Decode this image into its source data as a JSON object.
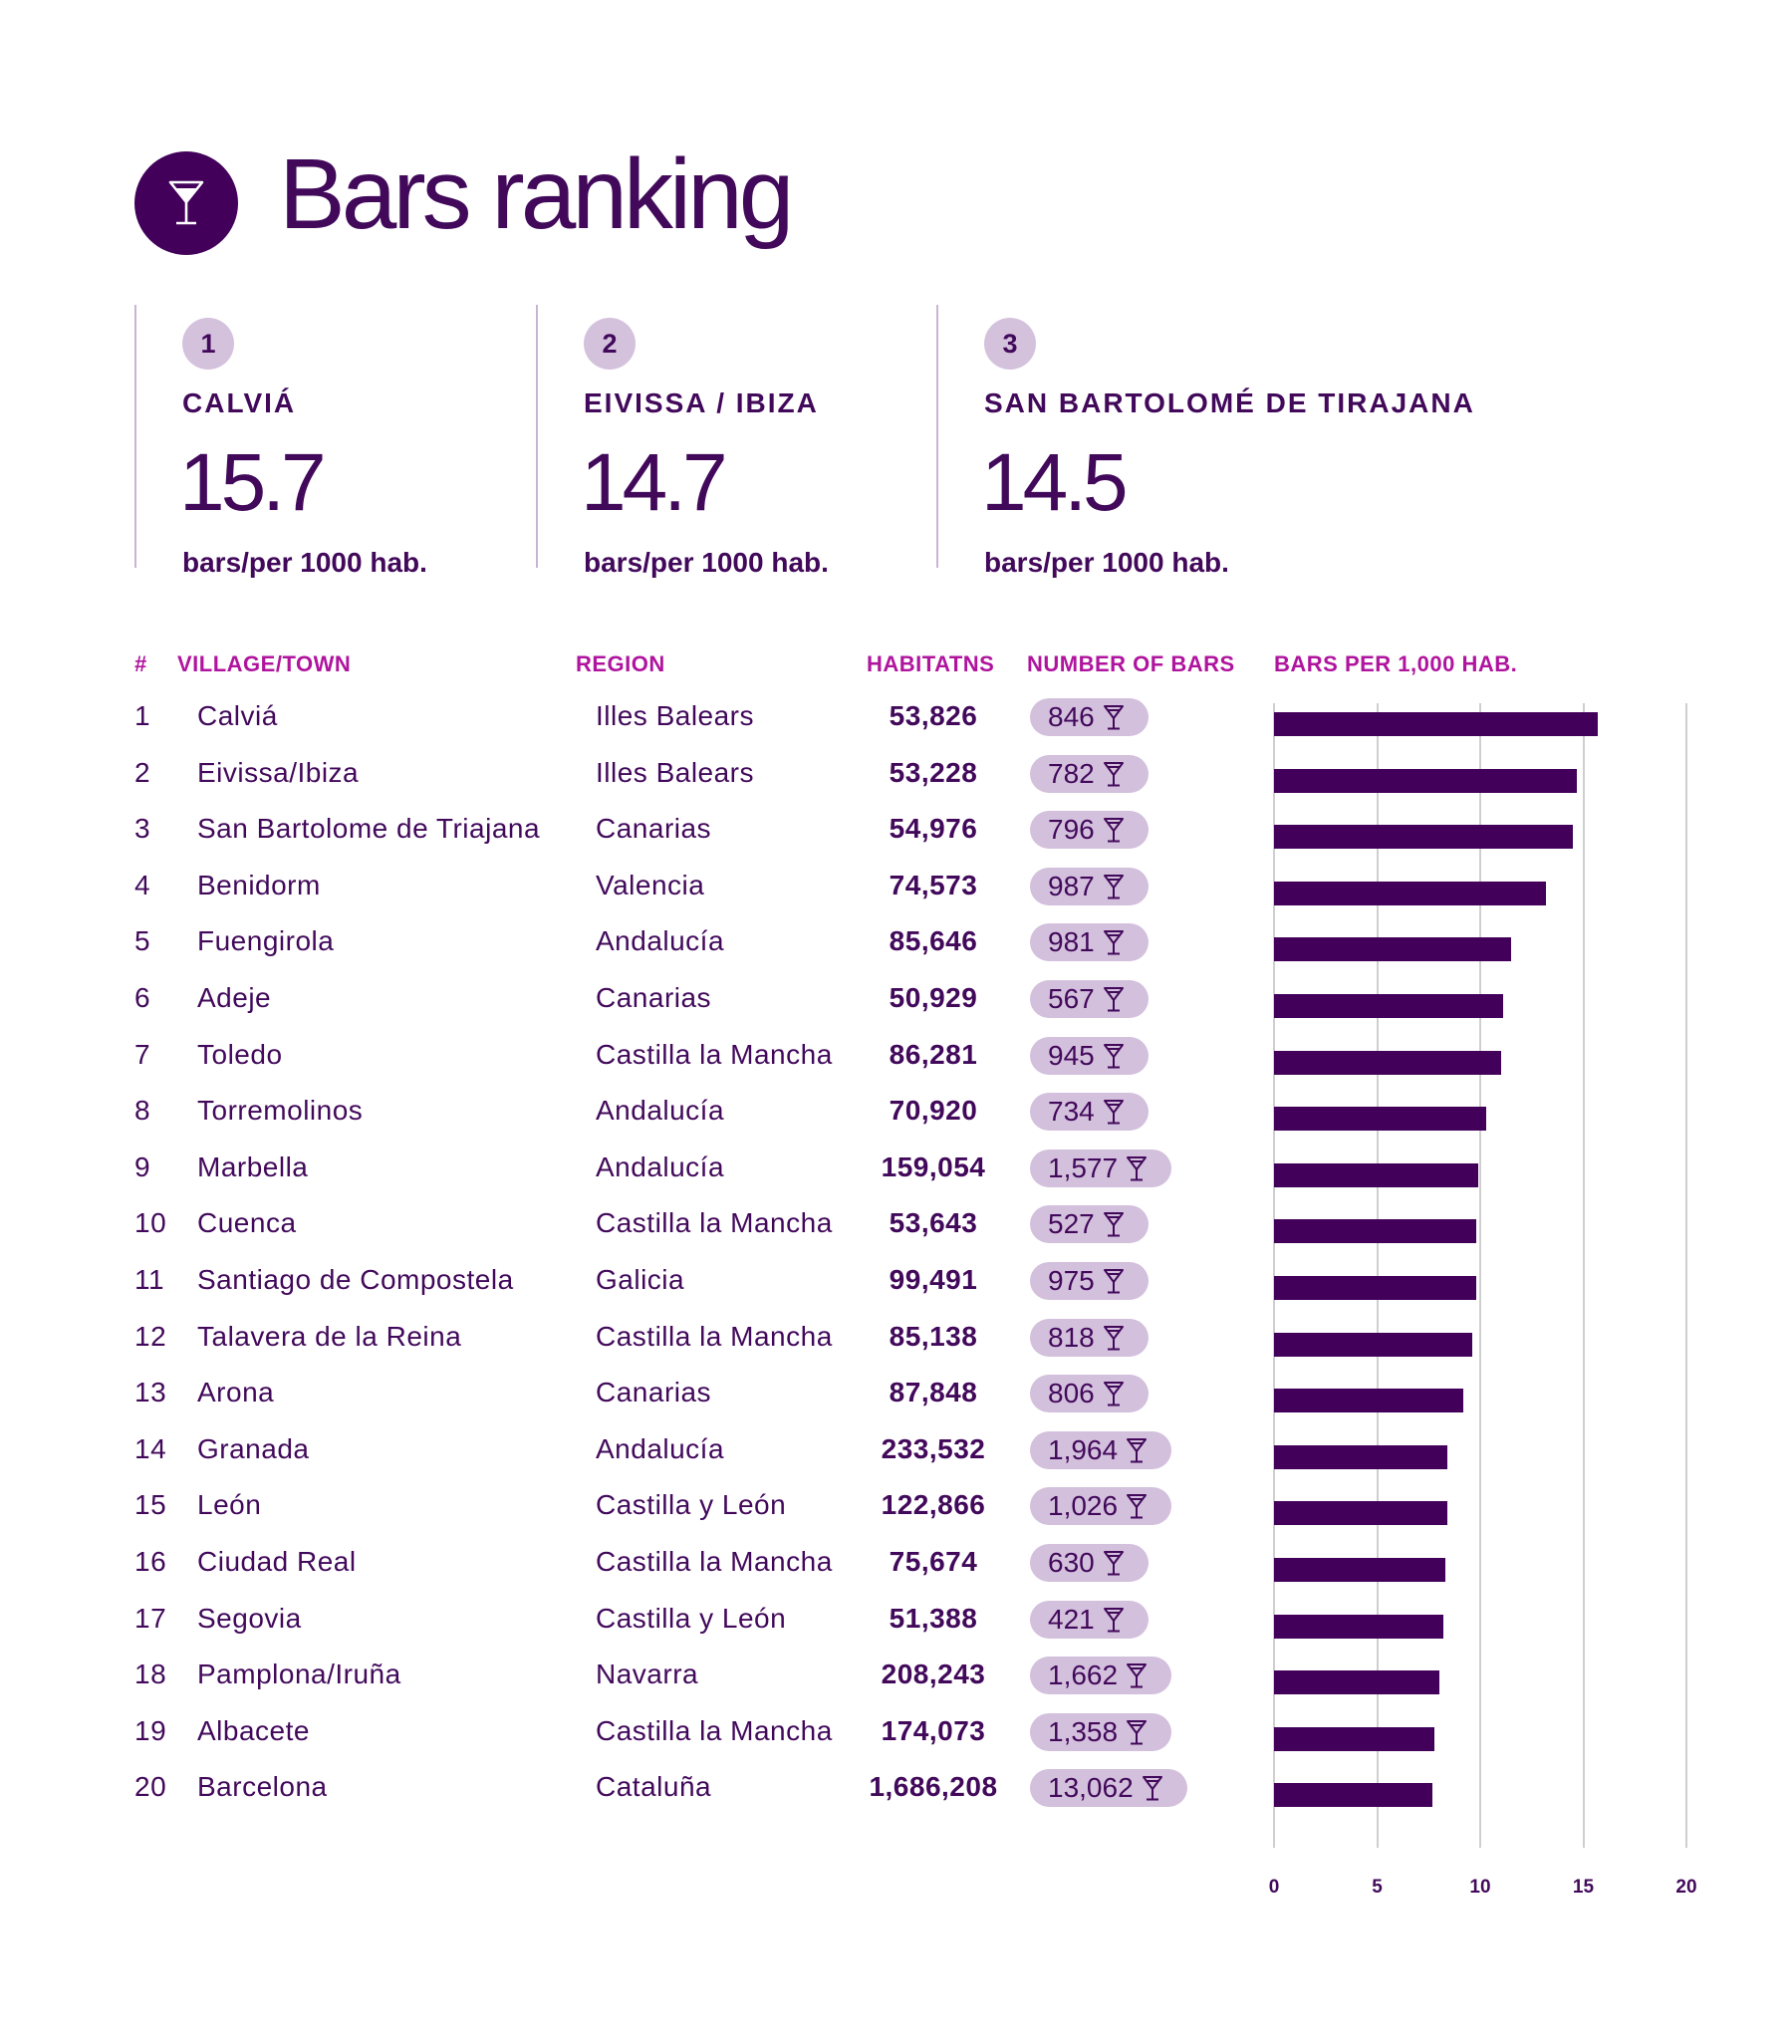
{
  "header": {
    "icon": "cocktail-glass-icon",
    "title": "Bars ranking"
  },
  "top3": [
    {
      "rank": "1",
      "city": "CALVIÁ",
      "value": "15.7",
      "unit": "bars/per 1000 hab."
    },
    {
      "rank": "2",
      "city": "EIVISSA / IBIZA",
      "value": "14.7",
      "unit": "bars/per 1000 hab."
    },
    {
      "rank": "3",
      "city": "SAN BARTOLOMÉ DE TIRAJANA",
      "value": "14.5",
      "unit": "bars/per 1000 hab."
    }
  ],
  "table": {
    "columns": {
      "rank": "#",
      "town": "VILLAGE/TOWN",
      "region": "REGION",
      "habitants": "HABITATNS",
      "bars": "NUMBER OF BARS",
      "per1000": "BARS PER 1,000 HAB."
    },
    "rows": [
      {
        "rank": "1",
        "town": "Calviá",
        "region": "Illes Balears",
        "habitants": "53,826",
        "bars": "846"
      },
      {
        "rank": "2",
        "town": "Eivissa/Ibiza",
        "region": "Illes Balears",
        "habitants": "53,228",
        "bars": "782"
      },
      {
        "rank": "3",
        "town": "San Bartolome de Triajana",
        "region": "Canarias",
        "habitants": "54,976",
        "bars": "796"
      },
      {
        "rank": "4",
        "town": "Benidorm",
        "region": "Valencia",
        "habitants": "74,573",
        "bars": "987"
      },
      {
        "rank": "5",
        "town": "Fuengirola",
        "region": "Andalucía",
        "habitants": "85,646",
        "bars": "981"
      },
      {
        "rank": "6",
        "town": "Adeje",
        "region": "Canarias",
        "habitants": "50,929",
        "bars": "567"
      },
      {
        "rank": "7",
        "town": "Toledo",
        "region": "Castilla la Mancha",
        "habitants": "86,281",
        "bars": "945"
      },
      {
        "rank": "8",
        "town": "Torremolinos",
        "region": "Andalucía",
        "habitants": "70,920",
        "bars": "734"
      },
      {
        "rank": "9",
        "town": "Marbella",
        "region": "Andalucía",
        "habitants": "159,054",
        "bars": "1,577"
      },
      {
        "rank": "10",
        "town": "Cuenca",
        "region": "Castilla la Mancha",
        "habitants": "53,643",
        "bars": "527"
      },
      {
        "rank": "11",
        "town": "Santiago de Compostela",
        "region": "Galicia",
        "habitants": "99,491",
        "bars": "975"
      },
      {
        "rank": "12",
        "town": "Talavera de la Reina",
        "region": "Castilla la Mancha",
        "habitants": "85,138",
        "bars": "818"
      },
      {
        "rank": "13",
        "town": "Arona",
        "region": "Canarias",
        "habitants": "87,848",
        "bars": "806"
      },
      {
        "rank": "14",
        "town": "Granada",
        "region": "Andalucía",
        "habitants": "233,532",
        "bars": "1,964"
      },
      {
        "rank": "15",
        "town": "León",
        "region": "Castilla y León",
        "habitants": "122,866",
        "bars": "1,026"
      },
      {
        "rank": "16",
        "town": "Ciudad Real",
        "region": "Castilla la Mancha",
        "habitants": "75,674",
        "bars": "630"
      },
      {
        "rank": "17",
        "town": "Segovia",
        "region": "Castilla y León",
        "habitants": "51,388",
        "bars": "421"
      },
      {
        "rank": "18",
        "town": "Pamplona/Iruña",
        "region": "Navarra",
        "habitants": "208,243",
        "bars": "1,662"
      },
      {
        "rank": "19",
        "town": "Albacete",
        "region": "Castilla la Mancha",
        "habitants": "174,073",
        "bars": "1,358"
      },
      {
        "rank": "20",
        "town": "Barcelona",
        "region": "Cataluña",
        "habitants": "1,686,208",
        "bars": "13,062"
      }
    ]
  },
  "colors": {
    "primary": "#42005a",
    "accent": "#b0149e",
    "pill": "#d3c0dc",
    "grid": "#cfcfcf"
  },
  "chart_data": {
    "type": "bar",
    "orientation": "horizontal",
    "title": "BARS PER 1,000 HAB.",
    "xlabel": "",
    "ylabel": "",
    "categories": [
      "Calviá",
      "Eivissa/Ibiza",
      "San Bartolome de Triajana",
      "Benidorm",
      "Fuengirola",
      "Adeje",
      "Toledo",
      "Torremolinos",
      "Marbella",
      "Cuenca",
      "Santiago de Compostela",
      "Talavera de la Reina",
      "Arona",
      "Granada",
      "León",
      "Ciudad Real",
      "Segovia",
      "Pamplona/Iruña",
      "Albacete",
      "Barcelona"
    ],
    "values": [
      15.7,
      14.7,
      14.5,
      13.2,
      11.5,
      11.1,
      11.0,
      10.3,
      9.9,
      9.8,
      9.8,
      9.6,
      9.2,
      8.4,
      8.4,
      8.3,
      8.2,
      8.0,
      7.8,
      7.7
    ],
    "xlim": [
      0,
      20
    ],
    "xticks": [
      "0",
      "5",
      "10",
      "15",
      "20"
    ],
    "grid": true,
    "legend": "none"
  }
}
